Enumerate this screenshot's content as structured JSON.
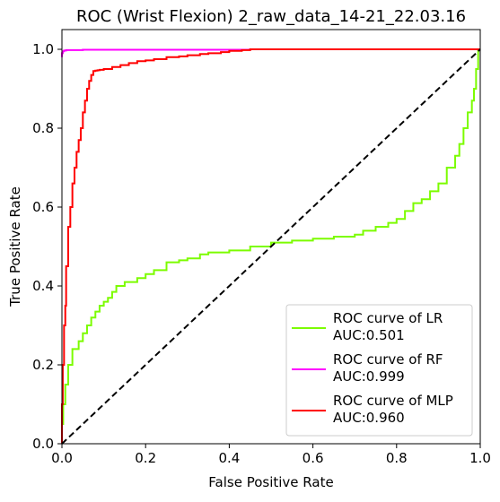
{
  "chart_data": {
    "type": "line",
    "title": "ROC (Wrist Flexion) 2_raw_data_14-21_22.03.16",
    "xlabel": "False Positive Rate",
    "ylabel": "True Positive Rate",
    "xlim": [
      0.0,
      1.0
    ],
    "ylim": [
      0.0,
      1.05
    ],
    "grid": false,
    "legend_position": "bottom-right",
    "x_ticks": [
      "0.0",
      "0.2",
      "0.4",
      "0.6",
      "0.8",
      "1.0"
    ],
    "y_ticks": [
      "0.0",
      "0.2",
      "0.4",
      "0.6",
      "0.8",
      "1.0"
    ],
    "series": [
      {
        "name": "ROC curve of LR",
        "auc_label": "AUC:0.501",
        "color": "#7cfc00",
        "x": [
          0.0,
          0.003,
          0.008,
          0.015,
          0.025,
          0.04,
          0.05,
          0.06,
          0.07,
          0.08,
          0.09,
          0.1,
          0.11,
          0.12,
          0.13,
          0.15,
          0.18,
          0.2,
          0.22,
          0.25,
          0.28,
          0.3,
          0.33,
          0.35,
          0.4,
          0.45,
          0.5,
          0.55,
          0.6,
          0.65,
          0.7,
          0.72,
          0.75,
          0.78,
          0.8,
          0.82,
          0.84,
          0.86,
          0.88,
          0.9,
          0.92,
          0.94,
          0.95,
          0.96,
          0.97,
          0.98,
          0.985,
          0.99,
          0.995,
          1.0
        ],
        "y": [
          0.0,
          0.05,
          0.1,
          0.15,
          0.2,
          0.24,
          0.26,
          0.28,
          0.3,
          0.32,
          0.335,
          0.35,
          0.36,
          0.37,
          0.385,
          0.4,
          0.41,
          0.42,
          0.43,
          0.44,
          0.46,
          0.465,
          0.47,
          0.48,
          0.485,
          0.49,
          0.5,
          0.51,
          0.515,
          0.52,
          0.525,
          0.53,
          0.54,
          0.55,
          0.56,
          0.57,
          0.59,
          0.61,
          0.62,
          0.64,
          0.66,
          0.7,
          0.73,
          0.76,
          0.8,
          0.84,
          0.87,
          0.9,
          0.95,
          1.0
        ]
      },
      {
        "name": "ROC curve of RF",
        "auc_label": "AUC:0.999",
        "color": "#ff00ff",
        "x": [
          0.0,
          0.002,
          0.005,
          0.01,
          0.02,
          0.05,
          0.2,
          0.45,
          0.46,
          1.0
        ],
        "y": [
          0.98,
          0.99,
          0.995,
          0.997,
          0.998,
          0.998,
          0.999,
          0.999,
          1.0,
          1.0
        ]
      },
      {
        "name": "ROC curve of MLP",
        "auc_label": "AUC:0.960",
        "color": "#ff0000",
        "x": [
          0.0,
          0.002,
          0.005,
          0.008,
          0.01,
          0.015,
          0.02,
          0.025,
          0.03,
          0.035,
          0.04,
          0.045,
          0.05,
          0.055,
          0.06,
          0.065,
          0.07,
          0.075,
          0.08,
          0.085,
          0.09,
          0.1,
          0.12,
          0.14,
          0.16,
          0.18,
          0.2,
          0.22,
          0.25,
          0.28,
          0.3,
          0.33,
          0.35,
          0.38,
          0.4,
          0.43,
          0.45,
          0.46,
          0.5,
          1.0
        ],
        "y": [
          0.0,
          0.1,
          0.2,
          0.3,
          0.35,
          0.45,
          0.55,
          0.6,
          0.66,
          0.7,
          0.74,
          0.77,
          0.8,
          0.84,
          0.87,
          0.9,
          0.92,
          0.935,
          0.945,
          0.946,
          0.947,
          0.948,
          0.95,
          0.955,
          0.96,
          0.965,
          0.97,
          0.972,
          0.975,
          0.98,
          0.982,
          0.985,
          0.988,
          0.99,
          0.993,
          0.996,
          0.998,
          1.0,
          1.0,
          1.0
        ]
      },
      {
        "name": "",
        "color": "#000000",
        "dashed": true,
        "x": [
          0.0,
          1.0
        ],
        "y": [
          0.0,
          1.0
        ]
      }
    ]
  }
}
